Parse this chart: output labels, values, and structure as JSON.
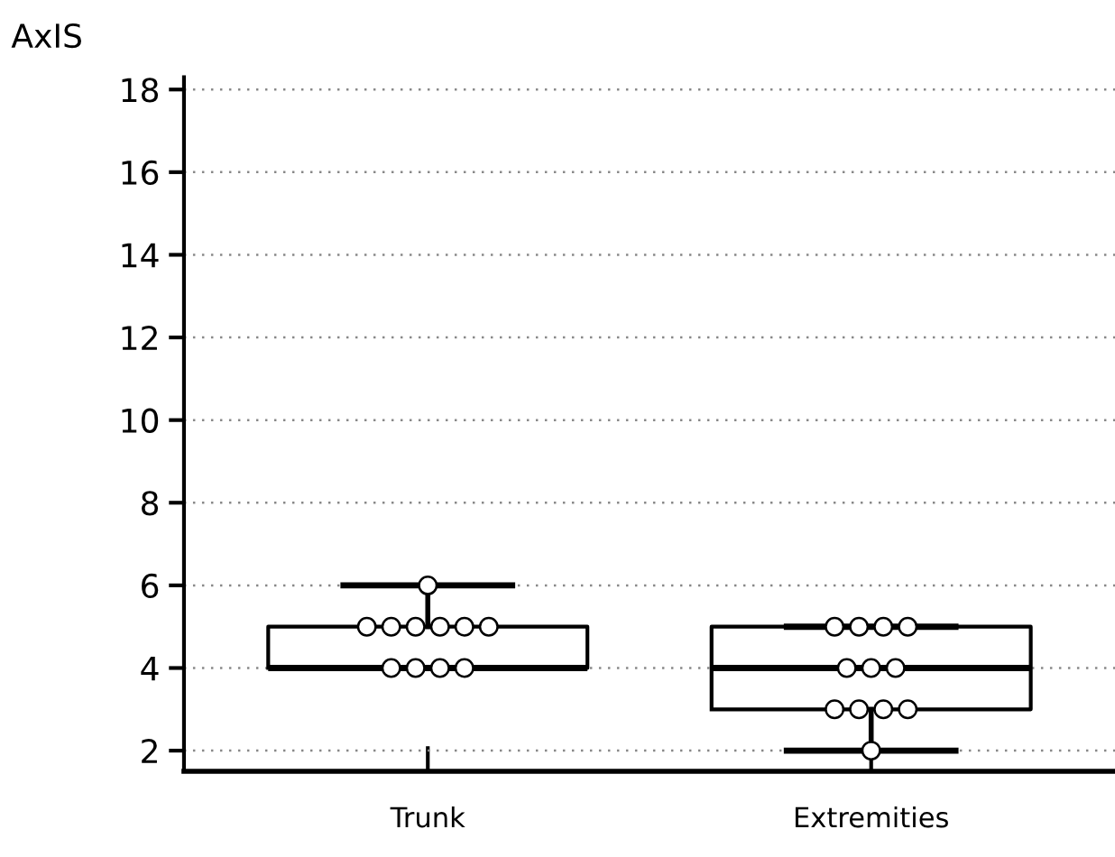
{
  "chart_data": {
    "type": "box",
    "ylabel": "AxIS",
    "categories": [
      "Trunk",
      "Extremities"
    ],
    "boxes": [
      {
        "low": 4,
        "q1": 4,
        "median": 4,
        "q3": 5,
        "high": 6
      },
      {
        "low": 2,
        "q1": 3,
        "median": 4,
        "q3": 5,
        "high": 5
      }
    ],
    "series": [
      {
        "type": "scatter",
        "color": "#ffffff",
        "x": [
          "Trunk",
          "Trunk",
          "Trunk",
          "Trunk",
          "Trunk",
          "Trunk",
          "Trunk",
          "Trunk",
          "Trunk",
          "Trunk",
          "Trunk",
          "Extremities",
          "Extremities",
          "Extremities",
          "Extremities",
          "Extremities",
          "Extremities",
          "Extremities",
          "Extremities",
          "Extremities",
          "Extremities",
          "Extremities",
          "Extremities"
        ],
        "values": [
          6,
          5,
          5,
          5,
          5,
          5,
          5,
          4,
          4,
          4,
          4,
          5,
          5,
          5,
          5,
          4,
          4,
          4,
          3,
          3,
          3,
          3,
          2
        ]
      }
    ],
    "marker": "circle",
    "ylim": [
      1.5,
      18.3
    ],
    "yticks": [
      2,
      4,
      6,
      8,
      10,
      12,
      14,
      16,
      18
    ],
    "grid": "y"
  }
}
